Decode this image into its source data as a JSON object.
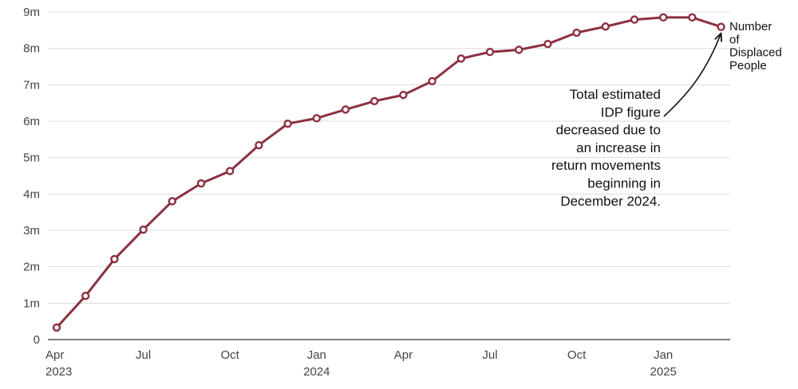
{
  "chart_data": {
    "type": "line",
    "title": "",
    "xlabel": "",
    "ylabel": "",
    "ylim": [
      0,
      9000000
    ],
    "grid": "horizontal",
    "y_ticks": [
      "0",
      "1m",
      "2m",
      "3m",
      "4m",
      "5m",
      "6m",
      "7m",
      "8m",
      "9m"
    ],
    "x_ticks": [
      {
        "date": "2023-04",
        "label": "Apr",
        "year": "2023"
      },
      {
        "date": "2023-07",
        "label": "Jul",
        "year": ""
      },
      {
        "date": "2023-10",
        "label": "Oct",
        "year": ""
      },
      {
        "date": "2024-01",
        "label": "Jan",
        "year": "2024"
      },
      {
        "date": "2024-04",
        "label": "Apr",
        "year": ""
      },
      {
        "date": "2024-07",
        "label": "Jul",
        "year": ""
      },
      {
        "date": "2024-10",
        "label": "Oct",
        "year": ""
      },
      {
        "date": "2025-01",
        "label": "Jan",
        "year": "2025"
      }
    ],
    "series": [
      {
        "name": "Number of Displaced People",
        "color": "#8b3140",
        "points": [
          {
            "x": "2023-04",
            "y": 330000
          },
          {
            "x": "2023-05",
            "y": 1200000
          },
          {
            "x": "2023-06",
            "y": 2210000
          },
          {
            "x": "2023-07",
            "y": 3020000
          },
          {
            "x": "2023-08",
            "y": 3800000
          },
          {
            "x": "2023-09",
            "y": 4290000
          },
          {
            "x": "2023-10",
            "y": 4630000
          },
          {
            "x": "2023-11",
            "y": 5340000
          },
          {
            "x": "2023-12",
            "y": 5930000
          },
          {
            "x": "2024-01",
            "y": 6080000
          },
          {
            "x": "2024-02",
            "y": 6320000
          },
          {
            "x": "2024-03",
            "y": 6550000
          },
          {
            "x": "2024-04",
            "y": 6720000
          },
          {
            "x": "2024-05",
            "y": 7100000
          },
          {
            "x": "2024-06",
            "y": 7720000
          },
          {
            "x": "2024-07",
            "y": 7900000
          },
          {
            "x": "2024-08",
            "y": 7960000
          },
          {
            "x": "2024-09",
            "y": 8120000
          },
          {
            "x": "2024-10",
            "y": 8430000
          },
          {
            "x": "2024-11",
            "y": 8600000
          },
          {
            "x": "2024-12",
            "y": 8790000
          },
          {
            "x": "2025-01",
            "y": 8850000
          },
          {
            "x": "2025-02",
            "y": 8850000
          },
          {
            "x": "2025-03",
            "y": 8590000
          }
        ]
      }
    ],
    "series_label_lines": [
      "Number",
      "of",
      "Displaced",
      "People"
    ],
    "annotation": {
      "lines": [
        "Total estimated",
        "IDP figure",
        "decreased due to",
        "an increase in",
        "return movements",
        "beginning in",
        "December 2024."
      ],
      "target_x": "2025-03"
    }
  }
}
